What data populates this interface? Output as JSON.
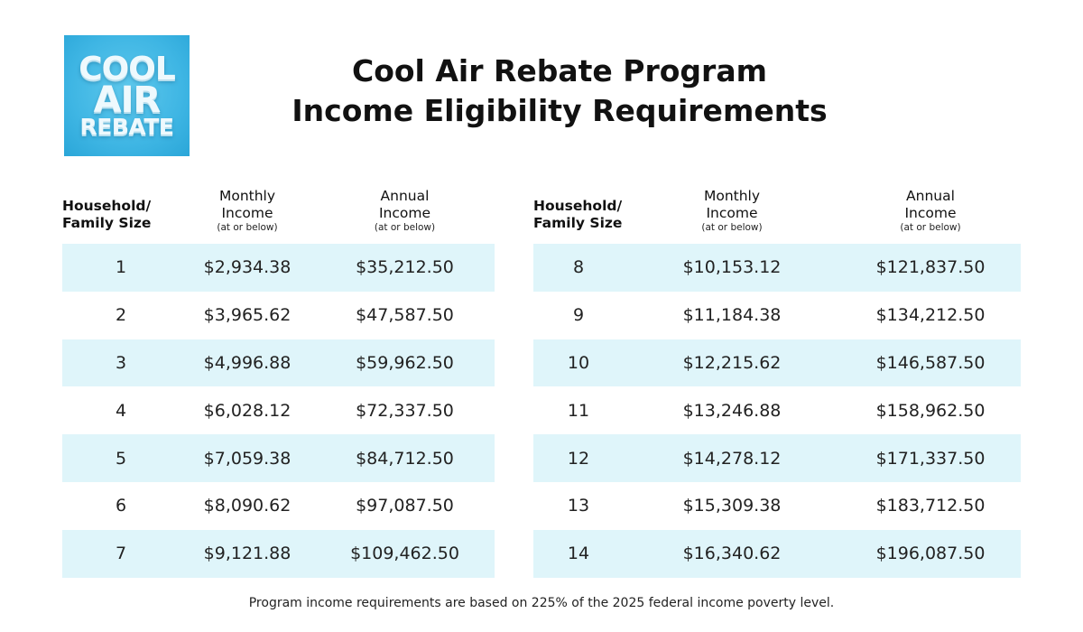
{
  "logo": {
    "line1": "COOL",
    "line2": "AIR",
    "line3": "REBATE"
  },
  "title": {
    "line1": "Cool Air Rebate Program",
    "line2": "Income Eligibility Requirements"
  },
  "headers": {
    "household": "Household/",
    "household_line2": "Family Size",
    "monthly": "Monthly",
    "monthly_line2": "Income",
    "annual": "Annual",
    "annual_line2": "Income",
    "qualifier": "(at or below)"
  },
  "left_rows": [
    {
      "size": "1",
      "monthly": "$2,934.38",
      "annual": "$35,212.50"
    },
    {
      "size": "2",
      "monthly": "$3,965.62",
      "annual": "$47,587.50"
    },
    {
      "size": "3",
      "monthly": "$4,996.88",
      "annual": "$59,962.50"
    },
    {
      "size": "4",
      "monthly": "$6,028.12",
      "annual": "$72,337.50"
    },
    {
      "size": "5",
      "monthly": "$7,059.38",
      "annual": "$84,712.50"
    },
    {
      "size": "6",
      "monthly": "$8,090.62",
      "annual": "$97,087.50"
    },
    {
      "size": "7",
      "monthly": "$9,121.88",
      "annual": "$109,462.50"
    }
  ],
  "right_rows": [
    {
      "size": "8",
      "monthly": "$10,153.12",
      "annual": "$121,837.50"
    },
    {
      "size": "9",
      "monthly": "$11,184.38",
      "annual": "$134,212.50"
    },
    {
      "size": "10",
      "monthly": "$12,215.62",
      "annual": "$146,587.50"
    },
    {
      "size": "11",
      "monthly": "$13,246.88",
      "annual": "$158,962.50"
    },
    {
      "size": "12",
      "monthly": "$14,278.12",
      "annual": "$171,337.50"
    },
    {
      "size": "13",
      "monthly": "$15,309.38",
      "annual": "$183,712.50"
    },
    {
      "size": "14",
      "monthly": "$16,340.62",
      "annual": "$196,087.50"
    }
  ],
  "footnote": "Program income requirements are based on 225% of the 2025 federal income poverty level.",
  "colors": {
    "row_stripe": "#dff5fa",
    "logo_bg": "#3fb6e4",
    "text": "#111111"
  }
}
